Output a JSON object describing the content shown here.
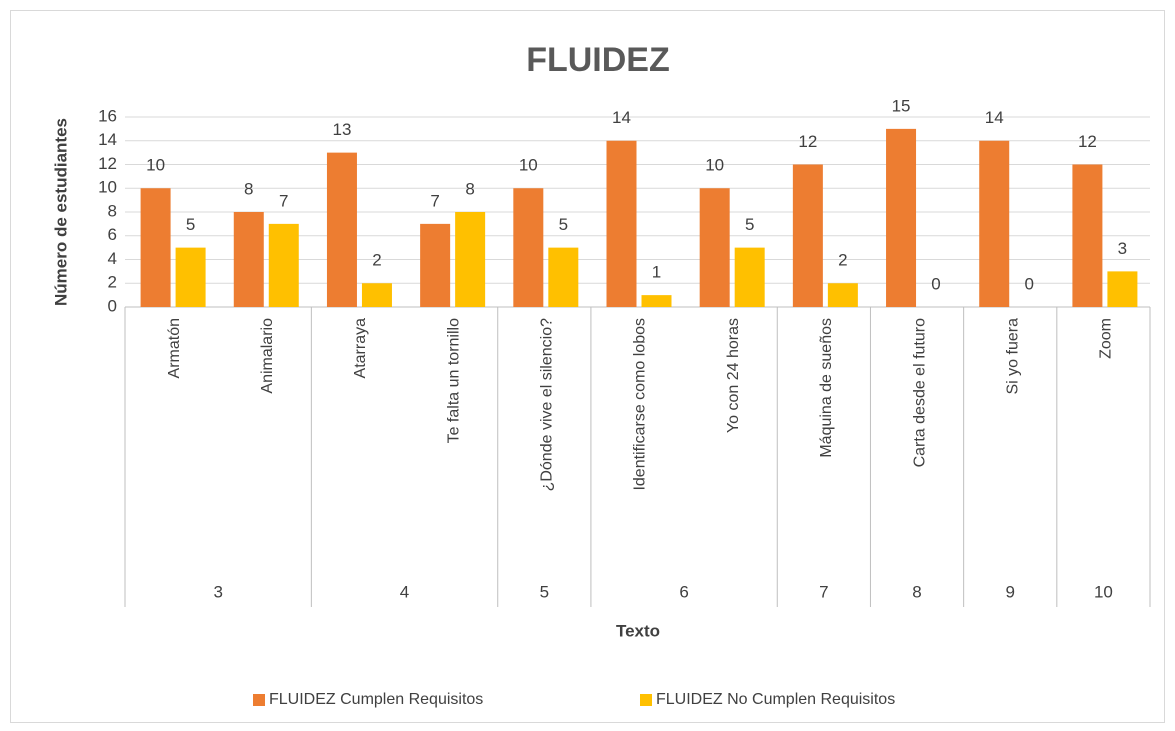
{
  "chart_data": {
    "type": "bar",
    "title": "FLUIDEZ",
    "x_label": "Texto",
    "y_label": "Número de estudiantes",
    "categories": [
      "Armatón",
      "Animalario",
      "Atarraya",
      "Te falta un tornillo",
      "¿Dónde vive el silencio?",
      "Identificarse como lobos",
      "Yo con 24 horas",
      "Máquina de sueños",
      "Carta desde el futuro",
      "Si yo fuera",
      "Zoom"
    ],
    "groups": [
      {
        "label": "3",
        "size": 2
      },
      {
        "label": "4",
        "size": 2
      },
      {
        "label": "5",
        "size": 1
      },
      {
        "label": "6",
        "size": 2
      },
      {
        "label": "7",
        "size": 1
      },
      {
        "label": "8",
        "size": 1
      },
      {
        "label": "9",
        "size": 1
      },
      {
        "label": "10",
        "size": 1
      }
    ],
    "series": [
      {
        "name": "FLUIDEZ Cumplen Requisitos",
        "color": "#ed7d31",
        "values": [
          10,
          8,
          13,
          7,
          10,
          14,
          10,
          12,
          15,
          14,
          12
        ]
      },
      {
        "name": "FLUIDEZ No Cumplen Requisitos",
        "color": "#ffc000",
        "values": [
          5,
          7,
          2,
          8,
          5,
          1,
          5,
          2,
          0,
          0,
          3
        ]
      }
    ],
    "ylim": [
      0,
      16
    ],
    "yticks": [
      0,
      2,
      4,
      6,
      8,
      10,
      12,
      14,
      16
    ],
    "grid": true,
    "legend": "bottom"
  }
}
